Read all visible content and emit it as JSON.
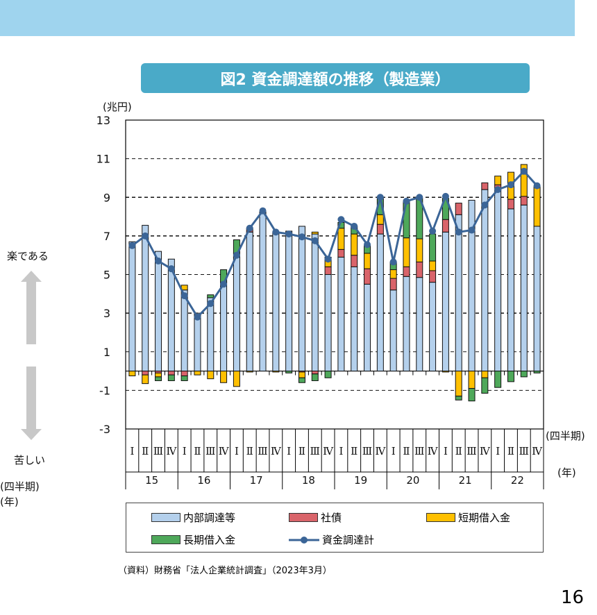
{
  "title": "図2  資金調達額の推移（製造業）",
  "side": {
    "up_label": "楽である",
    "down_label": "苦しい",
    "quarter_unit": "(四半期)",
    "year_unit": "(年)"
  },
  "right": {
    "quarter_unit": "(四半期)",
    "year_unit": "(年)"
  },
  "source": "（資料）財務省「法人企業統計調査」（2023年3月）",
  "page_number": "16",
  "chart_data": {
    "type": "bar",
    "stacked": true,
    "ylabel": "(兆円)",
    "ylim": [
      -3,
      13
    ],
    "yticks": [
      "13",
      "11",
      "9",
      "7",
      "5",
      "3",
      "1",
      "-1",
      "-3"
    ],
    "grid": true,
    "legend_position": "bottom",
    "quarters": [
      "Ⅰ",
      "Ⅱ",
      "Ⅲ",
      "Ⅳ"
    ],
    "years": [
      "15",
      "16",
      "17",
      "18",
      "19",
      "20",
      "21",
      "22"
    ],
    "colors": {
      "internal": "#b4d0ec",
      "bond": "#d9646a",
      "short": "#ffc000",
      "long": "#4ea85a",
      "total": "#3b6597"
    },
    "series": [
      {
        "key": "internal",
        "name": "内部調達等",
        "values": [
          6.7,
          7.55,
          6.2,
          5.8,
          4.2,
          3.0,
          3.8,
          4.6,
          5.9,
          7.2,
          8.2,
          7.2,
          7.25,
          7.5,
          7.1,
          5.0,
          5.9,
          5.4,
          4.5,
          7.1,
          4.2,
          4.9,
          4.85,
          4.6,
          7.2,
          8.1,
          8.85,
          9.4,
          9.35,
          8.4,
          8.6,
          7.5
        ]
      },
      {
        "key": "bond",
        "name": "社債",
        "values": [
          0,
          -0.2,
          -0.1,
          -0.2,
          -0.25,
          0,
          0,
          0,
          0.2,
          0.2,
          0,
          0,
          0,
          -0.05,
          -0.15,
          0.4,
          0.4,
          0.6,
          0.8,
          0.5,
          0.6,
          0.5,
          0.8,
          0.6,
          0.65,
          0.6,
          0,
          0.35,
          0.3,
          0.5,
          0.45,
          0
        ]
      },
      {
        "key": "short",
        "name": "短期借入金",
        "values": [
          -0.25,
          -0.45,
          -0.2,
          0,
          0.25,
          -0.2,
          -0.4,
          -0.6,
          -0.8,
          -0.05,
          0,
          -0.05,
          0,
          -0.3,
          0.1,
          0.5,
          1.1,
          1.1,
          0.8,
          0.5,
          0.45,
          1.5,
          1.2,
          0.5,
          -0.05,
          -1.3,
          -0.9,
          -0.35,
          0.45,
          1.4,
          1.65,
          2.05
        ]
      },
      {
        "key": "long",
        "name": "長期借入金",
        "values": [
          0,
          0,
          -0.2,
          -0.3,
          -0.25,
          0,
          0.15,
          0.65,
          0.7,
          0,
          0.05,
          0,
          -0.1,
          -0.25,
          -0.35,
          -0.35,
          0.3,
          0.4,
          0.4,
          0.9,
          0.4,
          1.9,
          2.1,
          1.4,
          1.1,
          -0.2,
          -0.65,
          -0.8,
          -0.85,
          -0.55,
          -0.3,
          -0.1
        ]
      },
      {
        "key": "total",
        "name": "資金調達計",
        "type": "line",
        "values": [
          6.5,
          7.0,
          5.7,
          5.3,
          3.9,
          2.8,
          3.5,
          4.5,
          6.0,
          7.4,
          8.3,
          7.2,
          7.1,
          6.95,
          6.75,
          5.8,
          7.85,
          7.5,
          6.55,
          9.0,
          5.65,
          8.8,
          9.0,
          7.25,
          9.05,
          7.2,
          7.3,
          8.6,
          9.4,
          9.65,
          10.35,
          9.6
        ]
      }
    ]
  }
}
